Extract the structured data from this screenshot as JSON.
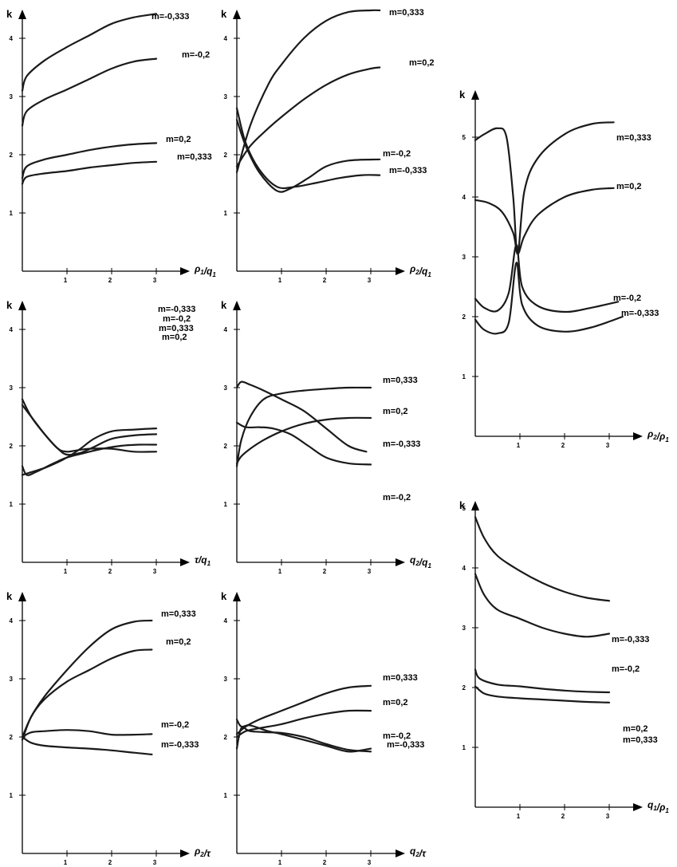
{
  "chart_data": [
    {
      "type": "line",
      "ylabel": "k",
      "xlabel": "ρ1/q1",
      "x_ticks": [
        1,
        2,
        3
      ],
      "y_ticks": [
        1,
        2,
        3,
        4
      ],
      "xlim": [
        0,
        3.6
      ],
      "ylim": [
        0,
        4.3
      ],
      "series": [
        {
          "name": "m=-0,333",
          "x": [
            0,
            0.1,
            0.5,
            1,
            1.5,
            2,
            2.5,
            3
          ],
          "y": [
            3.1,
            3.35,
            3.62,
            3.85,
            4.05,
            4.25,
            4.36,
            4.42
          ]
        },
        {
          "name": "m=-0,2",
          "x": [
            0,
            0.1,
            0.5,
            1,
            1.5,
            2,
            2.5,
            3
          ],
          "y": [
            2.5,
            2.75,
            2.95,
            3.12,
            3.3,
            3.48,
            3.6,
            3.65
          ]
        },
        {
          "name": "m=0,2",
          "x": [
            0,
            0.1,
            0.5,
            1,
            1.5,
            2,
            2.5,
            3
          ],
          "y": [
            1.6,
            1.8,
            1.92,
            2.0,
            2.08,
            2.14,
            2.18,
            2.2
          ]
        },
        {
          "name": "m=0,333",
          "x": [
            0,
            0.1,
            0.5,
            1,
            1.5,
            2,
            2.5,
            3
          ],
          "y": [
            1.5,
            1.62,
            1.68,
            1.72,
            1.78,
            1.82,
            1.86,
            1.88
          ]
        }
      ]
    },
    {
      "type": "line",
      "ylabel": "k",
      "xlabel": "ρ2/q1",
      "x_ticks": [
        1,
        2,
        3
      ],
      "y_ticks": [
        1,
        2,
        3,
        4
      ],
      "xlim": [
        0,
        3.6
      ],
      "ylim": [
        0,
        4.3
      ],
      "series": [
        {
          "name": "m=0,333",
          "x": [
            0,
            0.3,
            0.7,
            1,
            1.5,
            2,
            2.5,
            3,
            3.2
          ],
          "y": [
            1.7,
            2.5,
            3.2,
            3.55,
            4.0,
            4.3,
            4.45,
            4.48,
            4.48
          ]
        },
        {
          "name": "m=0,2",
          "x": [
            0,
            0.3,
            0.7,
            1,
            1.5,
            2,
            2.5,
            3,
            3.2
          ],
          "y": [
            1.8,
            2.15,
            2.45,
            2.65,
            2.95,
            3.2,
            3.38,
            3.48,
            3.5
          ]
        },
        {
          "name": "m=-0,2",
          "x": [
            0,
            0.2,
            0.5,
            0.9,
            1.2,
            1.6,
            2.0,
            2.5,
            3.2
          ],
          "y": [
            2.6,
            2.15,
            1.7,
            1.38,
            1.42,
            1.6,
            1.8,
            1.9,
            1.92
          ]
        },
        {
          "name": "m=-0,333",
          "x": [
            0,
            0.2,
            0.5,
            0.9,
            1.3,
            1.8,
            2.3,
            2.8,
            3.2
          ],
          "y": [
            2.8,
            2.2,
            1.75,
            1.45,
            1.45,
            1.52,
            1.6,
            1.65,
            1.65
          ]
        }
      ]
    },
    {
      "type": "line",
      "ylabel": "k",
      "xlabel": "ρ2/ρ1",
      "x_ticks": [
        1,
        2,
        3
      ],
      "y_ticks": [
        1,
        2,
        3,
        4,
        5
      ],
      "xlim": [
        0,
        3.6
      ],
      "ylim": [
        0,
        5.4
      ],
      "series": [
        {
          "name": "m=0,333",
          "x": [
            0,
            0.2,
            0.5,
            0.7,
            0.85,
            0.95,
            1.1,
            1.4,
            2.0,
            2.6,
            3.1
          ],
          "y": [
            4.95,
            5.05,
            5.15,
            5.0,
            4.0,
            3.05,
            4.1,
            4.65,
            5.05,
            5.22,
            5.25
          ]
        },
        {
          "name": "m=0,2",
          "x": [
            0,
            0.3,
            0.6,
            0.85,
            0.95,
            1.1,
            1.4,
            2.0,
            2.6,
            3.1
          ],
          "y": [
            3.95,
            3.9,
            3.75,
            3.4,
            3.05,
            3.35,
            3.7,
            4.0,
            4.12,
            4.15
          ]
        },
        {
          "name": "m=-0,2",
          "x": [
            0,
            0.2,
            0.5,
            0.75,
            0.92,
            1.05,
            1.4,
            2.0,
            2.6,
            3.2
          ],
          "y": [
            2.3,
            2.15,
            2.1,
            2.4,
            3.2,
            2.5,
            2.18,
            2.08,
            2.15,
            2.25
          ]
        },
        {
          "name": "m=-0,333",
          "x": [
            0,
            0.2,
            0.5,
            0.75,
            0.92,
            1.05,
            1.4,
            2.0,
            2.6,
            3.3
          ],
          "y": [
            1.95,
            1.78,
            1.72,
            1.9,
            2.9,
            2.2,
            1.85,
            1.75,
            1.82,
            2.0
          ]
        }
      ]
    },
    {
      "type": "line",
      "ylabel": "k",
      "xlabel": "τ/q1",
      "x_ticks": [
        1,
        2,
        3
      ],
      "y_ticks": [
        1,
        2,
        3,
        4
      ],
      "xlim": [
        0,
        3.6
      ],
      "ylim": [
        0,
        4.3
      ],
      "series": [
        {
          "name": "m=-0,333",
          "x": [
            0,
            0.2,
            0.5,
            0.8,
            1.0,
            1.3,
            1.6,
            2.0,
            2.5,
            3.0
          ],
          "y": [
            1.5,
            1.55,
            1.62,
            1.72,
            1.8,
            1.95,
            2.12,
            2.25,
            2.28,
            2.3
          ]
        },
        {
          "name": "m=-0,2",
          "x": [
            0,
            0.2,
            0.5,
            0.8,
            1.0,
            1.3,
            1.6,
            2.0,
            2.5,
            3.0
          ],
          "y": [
            2.8,
            2.5,
            2.2,
            1.95,
            1.85,
            1.88,
            1.98,
            2.12,
            2.18,
            2.2
          ]
        },
        {
          "name": "m=0,333",
          "x": [
            0,
            0.1,
            0.3,
            0.7,
            1.0,
            1.4,
            1.8,
            2.2,
            2.6,
            3.0
          ],
          "y": [
            1.65,
            1.5,
            1.55,
            1.7,
            1.8,
            1.88,
            1.95,
            2.0,
            2.02,
            2.02
          ]
        },
        {
          "name": "m=0,2",
          "x": [
            0,
            0.2,
            0.5,
            0.8,
            1.0,
            1.2,
            1.5,
            2.0,
            2.5,
            3.0
          ],
          "y": [
            2.7,
            2.5,
            2.2,
            1.95,
            1.9,
            1.92,
            1.95,
            1.95,
            1.9,
            1.9
          ]
        }
      ]
    },
    {
      "type": "line",
      "ylabel": "k",
      "xlabel": "q2/q1",
      "x_ticks": [
        1,
        2,
        3
      ],
      "y_ticks": [
        1,
        2,
        3,
        4
      ],
      "xlim": [
        0,
        3.6
      ],
      "ylim": [
        0,
        4.3
      ],
      "series": [
        {
          "name": "m=0,333",
          "x": [
            0,
            0.1,
            0.3,
            0.6,
            1.0,
            1.5,
            2.0,
            2.5,
            3.0
          ],
          "y": [
            1.65,
            2.1,
            2.5,
            2.8,
            2.9,
            2.95,
            2.98,
            3.0,
            3.0
          ]
        },
        {
          "name": "m=0,2",
          "x": [
            0,
            0.1,
            0.3,
            0.6,
            1.0,
            1.5,
            2.0,
            2.5,
            3.0
          ],
          "y": [
            1.7,
            1.82,
            1.95,
            2.1,
            2.25,
            2.38,
            2.45,
            2.48,
            2.48
          ]
        },
        {
          "name": "m=-0,333",
          "x": [
            0,
            0.1,
            0.3,
            0.6,
            1.0,
            1.5,
            2.0,
            2.5,
            2.9
          ],
          "y": [
            3.0,
            3.1,
            3.05,
            2.95,
            2.8,
            2.6,
            2.3,
            2.0,
            1.9
          ]
        },
        {
          "name": "m=-0,2",
          "x": [
            0,
            0.2,
            0.5,
            0.8,
            1.2,
            1.6,
            2.0,
            2.5,
            3.0
          ],
          "y": [
            2.4,
            2.32,
            2.32,
            2.3,
            2.2,
            2.0,
            1.8,
            1.7,
            1.68
          ]
        }
      ]
    },
    {
      "type": "line",
      "ylabel": "k",
      "xlabel": "q1/ρ1",
      "x_ticks": [
        1,
        2,
        3
      ],
      "y_ticks": [
        1,
        2,
        3,
        4,
        5
      ],
      "xlim": [
        0,
        3.6
      ],
      "ylim": [
        0,
        5.4
      ],
      "series": [
        {
          "name": "m=-0,333",
          "x": [
            0,
            0.2,
            0.5,
            1.0,
            1.5,
            2.0,
            2.5,
            3.0
          ],
          "y": [
            4.85,
            4.5,
            4.2,
            3.95,
            3.75,
            3.6,
            3.5,
            3.45
          ]
        },
        {
          "name": "m=-0,2",
          "x": [
            0,
            0.2,
            0.5,
            1.0,
            1.5,
            2.0,
            2.5,
            3.0
          ],
          "y": [
            3.9,
            3.55,
            3.3,
            3.15,
            3.0,
            2.9,
            2.85,
            2.9
          ]
        },
        {
          "name": "m=0,2",
          "x": [
            0,
            0.1,
            0.5,
            1.0,
            1.5,
            2.0,
            2.5,
            3.0
          ],
          "y": [
            2.3,
            2.15,
            2.05,
            2.02,
            1.98,
            1.95,
            1.93,
            1.92
          ]
        },
        {
          "name": "m=0,333",
          "x": [
            0,
            0.2,
            0.5,
            1.0,
            1.5,
            2.0,
            2.5,
            3.0
          ],
          "y": [
            2.02,
            1.9,
            1.85,
            1.82,
            1.8,
            1.78,
            1.76,
            1.75
          ]
        }
      ]
    },
    {
      "type": "line",
      "ylabel": "k",
      "xlabel": "ρ2/τ",
      "x_ticks": [
        1,
        2,
        3
      ],
      "y_ticks": [
        1,
        2,
        3,
        4
      ],
      "xlim": [
        0,
        3.6
      ],
      "ylim": [
        0,
        4.3
      ],
      "series": [
        {
          "name": "m=0,333",
          "x": [
            0,
            0.2,
            0.5,
            1.0,
            1.5,
            2.0,
            2.5,
            2.9
          ],
          "y": [
            2.0,
            2.35,
            2.7,
            3.15,
            3.55,
            3.85,
            3.98,
            4.0
          ]
        },
        {
          "name": "m=0,2",
          "x": [
            0,
            0.2,
            0.5,
            1.0,
            1.5,
            2.0,
            2.5,
            2.9
          ],
          "y": [
            1.95,
            2.35,
            2.65,
            2.95,
            3.15,
            3.35,
            3.48,
            3.5
          ]
        },
        {
          "name": "m=-0,2",
          "x": [
            0,
            0.2,
            0.5,
            1.0,
            1.5,
            2.0,
            2.5,
            2.9
          ],
          "y": [
            2.0,
            2.08,
            2.1,
            2.12,
            2.1,
            2.04,
            2.04,
            2.05
          ]
        },
        {
          "name": "m=-0,333",
          "x": [
            0,
            0.2,
            0.5,
            1.0,
            1.5,
            2.0,
            2.5,
            2.9
          ],
          "y": [
            2.0,
            1.9,
            1.85,
            1.82,
            1.8,
            1.77,
            1.73,
            1.7
          ]
        }
      ]
    },
    {
      "type": "line",
      "ylabel": "k",
      "xlabel": "q2/τ",
      "x_ticks": [
        1,
        2,
        3
      ],
      "y_ticks": [
        1,
        2,
        3,
        4
      ],
      "xlim": [
        0,
        3.6
      ],
      "ylim": [
        0,
        4.3
      ],
      "series": [
        {
          "name": "m=0,333",
          "x": [
            0,
            0.2,
            0.5,
            1.0,
            1.5,
            2.0,
            2.5,
            3.0
          ],
          "y": [
            2.05,
            2.18,
            2.3,
            2.45,
            2.6,
            2.75,
            2.85,
            2.88
          ]
        },
        {
          "name": "m=0,2",
          "x": [
            0,
            0.2,
            0.5,
            1.0,
            1.5,
            2.0,
            2.5,
            3.0
          ],
          "y": [
            2.0,
            2.1,
            2.15,
            2.22,
            2.32,
            2.4,
            2.45,
            2.45
          ]
        },
        {
          "name": "m=-0,2",
          "x": [
            0,
            0.1,
            0.3,
            0.7,
            1.0,
            1.5,
            2.0,
            2.5,
            3.0
          ],
          "y": [
            2.3,
            2.18,
            2.2,
            2.1,
            2.05,
            1.95,
            1.85,
            1.75,
            1.8
          ]
        },
        {
          "name": "m=-0,333",
          "x": [
            0,
            0.1,
            0.3,
            0.7,
            1.0,
            1.5,
            2.0,
            2.5,
            3.0
          ],
          "y": [
            1.8,
            2.15,
            2.1,
            2.08,
            2.07,
            2.0,
            1.88,
            1.78,
            1.75
          ]
        }
      ]
    }
  ]
}
